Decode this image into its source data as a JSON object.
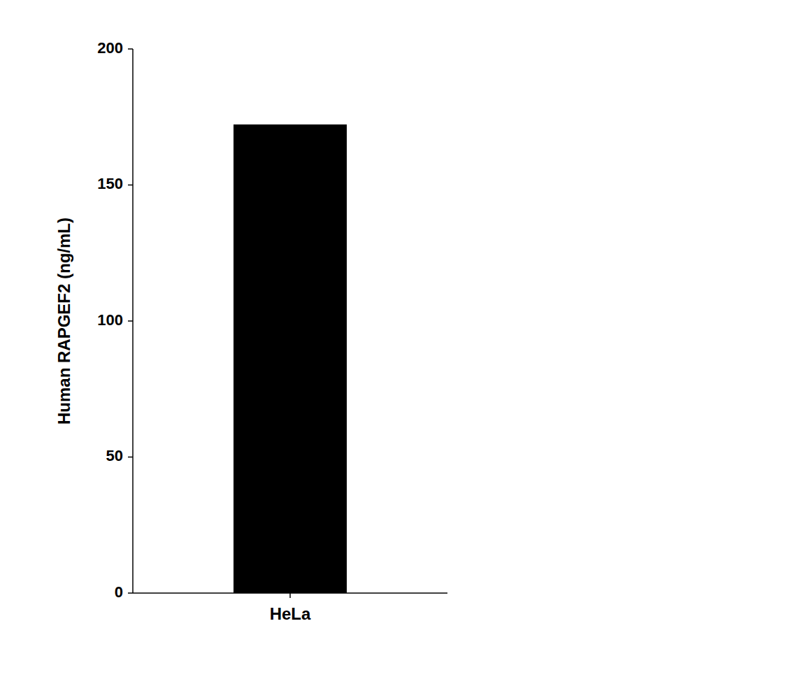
{
  "chart_data": {
    "type": "bar",
    "categories": [
      "HeLa"
    ],
    "values": [
      172.25
    ],
    "color": "#000000",
    "ylabel": "Human RAPGEF2 (ng/mL)",
    "ylim": [
      0,
      200
    ],
    "yticks": [
      0,
      50,
      100,
      150,
      200
    ],
    "grid": false
  }
}
